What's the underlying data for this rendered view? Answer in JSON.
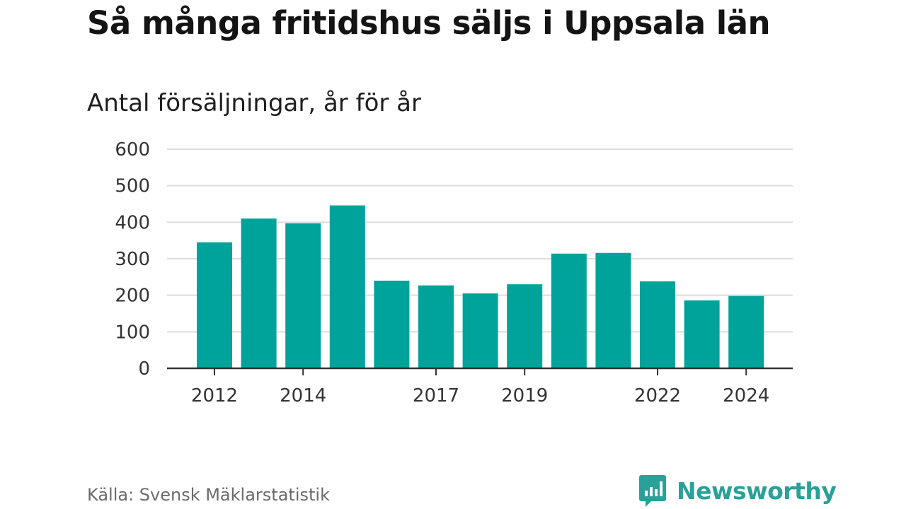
{
  "header": {
    "title": "Så många fritidshus säljs i Uppsala län",
    "subtitle": "Antal försäljningar, år för år"
  },
  "chart_data": {
    "type": "bar",
    "categories": [
      "2012",
      "2013",
      "2014",
      "2015",
      "2016",
      "2017",
      "2018",
      "2019",
      "2020",
      "2021",
      "2022",
      "2023",
      "2024"
    ],
    "values": [
      345,
      410,
      397,
      446,
      240,
      227,
      205,
      230,
      314,
      316,
      238,
      186,
      198
    ],
    "x_tick_labels": [
      "2012",
      "2014",
      "2017",
      "2019",
      "2022",
      "2024"
    ],
    "y_ticks": [
      0,
      100,
      200,
      300,
      400,
      500,
      600
    ],
    "ylim": [
      0,
      600
    ],
    "grid": true,
    "bar_color": "#00a39a"
  },
  "footer": {
    "source": "Källa: Svensk Mäklarstatistik",
    "brand": "Newsworthy",
    "brand_icon": "chat-bar-chart-icon",
    "brand_color": "#2aa198"
  }
}
